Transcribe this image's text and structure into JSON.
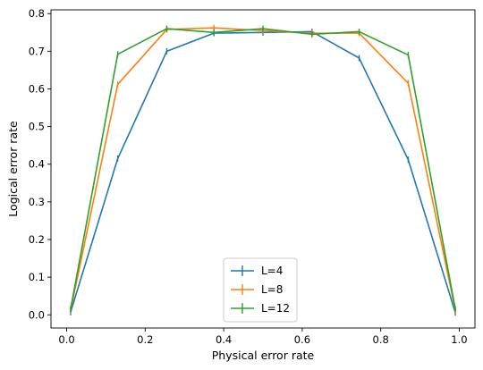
{
  "chart_data": {
    "type": "line",
    "xlabel": "Physical error rate",
    "ylabel": "Logical error rate",
    "xlim": [
      -0.04,
      1.04
    ],
    "ylim": [
      -0.035,
      0.81
    ],
    "x_ticks": [
      0.0,
      0.2,
      0.4,
      0.6,
      0.8,
      1.0
    ],
    "x_tick_labels": [
      "0.0",
      "0.2",
      "0.4",
      "0.6",
      "0.8",
      "1.0"
    ],
    "y_ticks": [
      0.0,
      0.1,
      0.2,
      0.3,
      0.4,
      0.5,
      0.6,
      0.7,
      0.8
    ],
    "y_tick_labels": [
      "0.0",
      "0.1",
      "0.2",
      "0.3",
      "0.4",
      "0.5",
      "0.6",
      "0.7",
      "0.8"
    ],
    "grid": false,
    "legend_position": "lower-center",
    "x": [
      0.01,
      0.13,
      0.255,
      0.375,
      0.5,
      0.625,
      0.745,
      0.87,
      0.99
    ],
    "series": [
      {
        "name": "L=4",
        "color": "#1f77b4",
        "values": [
          0.007,
          0.415,
          0.7,
          0.748,
          0.75,
          0.752,
          0.682,
          0.412,
          0.006
        ]
      },
      {
        "name": "L=8",
        "color": "#ff7f0e",
        "values": [
          0.012,
          0.612,
          0.758,
          0.762,
          0.755,
          0.748,
          0.748,
          0.615,
          0.012
        ]
      },
      {
        "name": "L=12",
        "color": "#2ca02c",
        "values": [
          0.015,
          0.692,
          0.76,
          0.75,
          0.76,
          0.745,
          0.752,
          0.69,
          0.015
        ]
      }
    ]
  }
}
